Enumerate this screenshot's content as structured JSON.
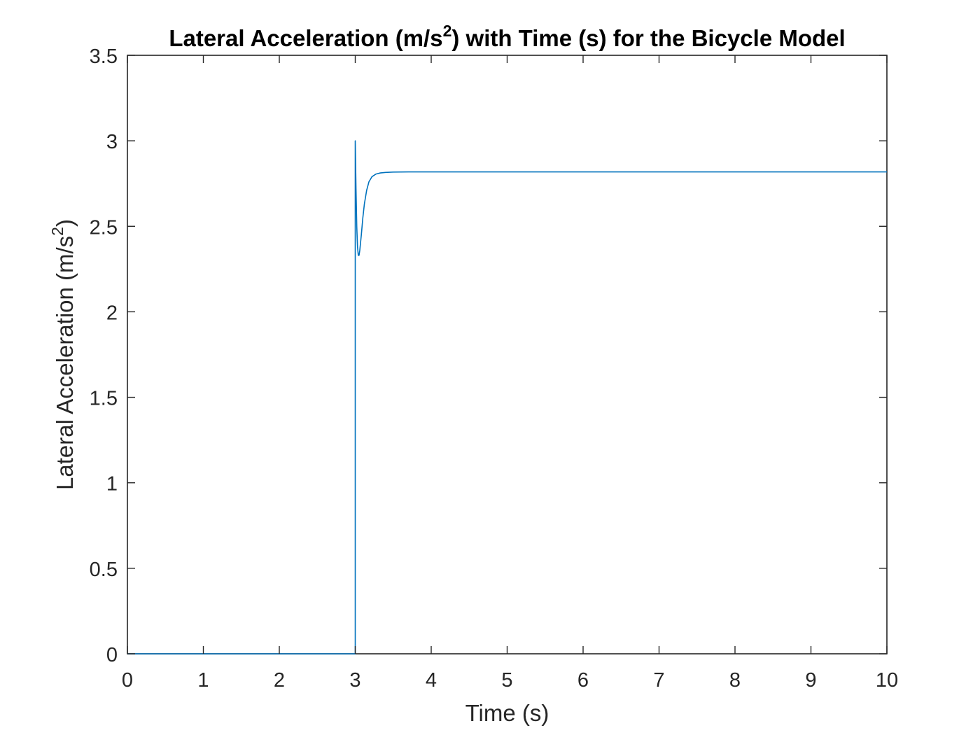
{
  "chart_data": {
    "type": "line",
    "title": {
      "before": "Lateral Acceleration (m/s",
      "sup": "2",
      "after": ") with Time (s) for the Bicycle Model"
    },
    "xlabel": "Time (s)",
    "ylabel": {
      "before": "Lateral Acceleration (m/s",
      "sup": "2",
      "after": ")"
    },
    "xlim": [
      0,
      10
    ],
    "ylim": [
      0,
      3.5
    ],
    "xticks": [
      0,
      1,
      2,
      3,
      4,
      5,
      6,
      7,
      8,
      9,
      10
    ],
    "xtick_labels": [
      "0",
      "1",
      "2",
      "3",
      "4",
      "5",
      "6",
      "7",
      "8",
      "9",
      "10"
    ],
    "yticks": [
      0,
      0.5,
      1,
      1.5,
      2,
      2.5,
      3,
      3.5
    ],
    "ytick_labels": [
      "0",
      "0.5",
      "1",
      "1.5",
      "2",
      "2.5",
      "3",
      "3.5"
    ],
    "grid": false,
    "line_color": "#0072BD",
    "axis_color": "#262626",
    "series": [
      {
        "x": [
          0,
          2.99,
          3.0,
          3.0,
          3.01,
          3.02,
          3.03,
          3.04,
          3.05,
          3.06,
          3.08,
          3.1,
          3.12,
          3.15,
          3.18,
          3.22,
          3.27,
          3.33,
          3.4,
          3.5,
          3.7,
          4.0,
          5.0,
          6.0,
          7.0,
          8.0,
          9.0,
          10.0
        ],
        "y": [
          0,
          0,
          0,
          3.0,
          2.72,
          2.5,
          2.38,
          2.33,
          2.33,
          2.36,
          2.45,
          2.55,
          2.63,
          2.71,
          2.76,
          2.79,
          2.805,
          2.812,
          2.815,
          2.817,
          2.818,
          2.818,
          2.818,
          2.818,
          2.818,
          2.818,
          2.818,
          2.818
        ]
      }
    ]
  }
}
